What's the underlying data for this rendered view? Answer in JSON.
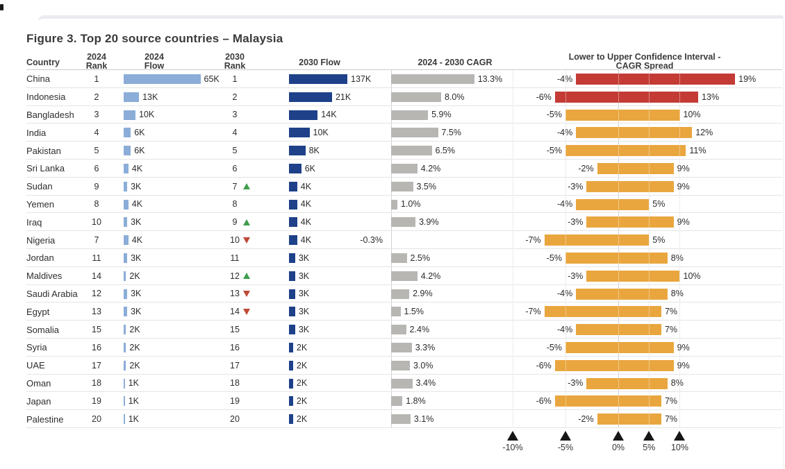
{
  "figure": {
    "title": "Figure 3. Top 20 source countries – Malaysia"
  },
  "headers": {
    "country": {
      "line1": "Country",
      "line2": ""
    },
    "rank2024": {
      "line1": "2024",
      "line2": "Rank"
    },
    "flow2024": {
      "line1": "2024",
      "line2": "Flow"
    },
    "rank2030": {
      "line1": "2030",
      "line2": "Rank"
    },
    "flow2030": {
      "line1": "2030 Flow",
      "line2": ""
    },
    "cagr": {
      "line1": "2024 - 2030 CAGR",
      "line2": ""
    },
    "ci": {
      "line1": "Lower to Upper Confidence Interval -",
      "line2": "CAGR Spread"
    }
  },
  "colors": {
    "flow2024_bar": "#8badd8",
    "flow2030_bar": "#1e4189",
    "cagr_bar": "#b7b6b3",
    "ci_bar_highlight": "#c43b35",
    "ci_bar_default": "#e9a63e",
    "rank_up_arrow": "#3f9e4d",
    "rank_down_arrow": "#bf4a36",
    "axis_marker": "#161616"
  },
  "chart_data": {
    "type": "table",
    "title": "Figure 3. Top 20 source countries – Malaysia",
    "columns": [
      "Country",
      "2024 Rank",
      "2024 Flow",
      "2030 Rank",
      "2030 Flow",
      "2024 - 2030 CAGR",
      "Lower to Upper Confidence Interval - CAGR Spread"
    ],
    "rows": [
      {
        "country": "China",
        "rank_2024": "1",
        "flow_2024": "65K",
        "flow_2024_k": 65,
        "rank_2030": "1",
        "rank_change": null,
        "flow_2030": "137K",
        "flow_2030_k": 137,
        "cagr": "13.3%",
        "cagr_pct": 13.3,
        "ci_lower": "-4%",
        "ci_lower_pct": -4,
        "ci_upper": "19%",
        "ci_upper_pct": 19,
        "ci_color": "highlight"
      },
      {
        "country": "Indonesia",
        "rank_2024": "2",
        "flow_2024": "13K",
        "flow_2024_k": 13,
        "rank_2030": "2",
        "rank_change": null,
        "flow_2030": "21K",
        "flow_2030_k": 21,
        "cagr": "8.0%",
        "cagr_pct": 8.0,
        "ci_lower": "-6%",
        "ci_lower_pct": -6,
        "ci_upper": "13%",
        "ci_upper_pct": 13,
        "ci_color": "highlight"
      },
      {
        "country": "Bangladesh",
        "rank_2024": "3",
        "flow_2024": "10K",
        "flow_2024_k": 10,
        "rank_2030": "3",
        "rank_change": null,
        "flow_2030": "14K",
        "flow_2030_k": 14,
        "cagr": "5.9%",
        "cagr_pct": 5.9,
        "ci_lower": "-5%",
        "ci_lower_pct": -5,
        "ci_upper": "10%",
        "ci_upper_pct": 10,
        "ci_color": "default"
      },
      {
        "country": "India",
        "rank_2024": "4",
        "flow_2024": "6K",
        "flow_2024_k": 6,
        "rank_2030": "4",
        "rank_change": null,
        "flow_2030": "10K",
        "flow_2030_k": 10,
        "cagr": "7.5%",
        "cagr_pct": 7.5,
        "ci_lower": "-4%",
        "ci_lower_pct": -4,
        "ci_upper": "12%",
        "ci_upper_pct": 12,
        "ci_color": "default"
      },
      {
        "country": "Pakistan",
        "rank_2024": "5",
        "flow_2024": "6K",
        "flow_2024_k": 6,
        "rank_2030": "5",
        "rank_change": null,
        "flow_2030": "8K",
        "flow_2030_k": 8,
        "cagr": "6.5%",
        "cagr_pct": 6.5,
        "ci_lower": "-5%",
        "ci_lower_pct": -5,
        "ci_upper": "11%",
        "ci_upper_pct": 11,
        "ci_color": "default"
      },
      {
        "country": "Sri Lanka",
        "rank_2024": "6",
        "flow_2024": "4K",
        "flow_2024_k": 4,
        "rank_2030": "6",
        "rank_change": null,
        "flow_2030": "6K",
        "flow_2030_k": 6,
        "cagr": "4.2%",
        "cagr_pct": 4.2,
        "ci_lower": "-2%",
        "ci_lower_pct": -2,
        "ci_upper": "9%",
        "ci_upper_pct": 9,
        "ci_color": "default"
      },
      {
        "country": "Sudan",
        "rank_2024": "9",
        "flow_2024": "3K",
        "flow_2024_k": 3,
        "rank_2030": "7",
        "rank_change": "up",
        "flow_2030": "4K",
        "flow_2030_k": 4,
        "cagr": "3.5%",
        "cagr_pct": 3.5,
        "ci_lower": "-3%",
        "ci_lower_pct": -3,
        "ci_upper": "9%",
        "ci_upper_pct": 9,
        "ci_color": "default"
      },
      {
        "country": "Yemen",
        "rank_2024": "8",
        "flow_2024": "4K",
        "flow_2024_k": 4,
        "rank_2030": "8",
        "rank_change": null,
        "flow_2030": "4K",
        "flow_2030_k": 4,
        "cagr": "1.0%",
        "cagr_pct": 1.0,
        "ci_lower": "-4%",
        "ci_lower_pct": -4,
        "ci_upper": "5%",
        "ci_upper_pct": 5,
        "ci_color": "default"
      },
      {
        "country": "Iraq",
        "rank_2024": "10",
        "flow_2024": "3K",
        "flow_2024_k": 3,
        "rank_2030": "9",
        "rank_change": "up",
        "flow_2030": "4K",
        "flow_2030_k": 4,
        "cagr": "3.9%",
        "cagr_pct": 3.9,
        "ci_lower": "-3%",
        "ci_lower_pct": -3,
        "ci_upper": "9%",
        "ci_upper_pct": 9,
        "ci_color": "default"
      },
      {
        "country": "Nigeria",
        "rank_2024": "7",
        "flow_2024": "4K",
        "flow_2024_k": 4,
        "rank_2030": "10",
        "rank_change": "down",
        "flow_2030": "4K",
        "flow_2030_k": 4,
        "cagr": "-0.3%",
        "cagr_pct": -0.3,
        "ci_lower": "-7%",
        "ci_lower_pct": -7,
        "ci_upper": "5%",
        "ci_upper_pct": 5,
        "ci_color": "default"
      },
      {
        "country": "Jordan",
        "rank_2024": "11",
        "flow_2024": "3K",
        "flow_2024_k": 3,
        "rank_2030": "11",
        "rank_change": null,
        "flow_2030": "3K",
        "flow_2030_k": 3,
        "cagr": "2.5%",
        "cagr_pct": 2.5,
        "ci_lower": "-5%",
        "ci_lower_pct": -5,
        "ci_upper": "8%",
        "ci_upper_pct": 8,
        "ci_color": "default"
      },
      {
        "country": "Maldives",
        "rank_2024": "14",
        "flow_2024": "2K",
        "flow_2024_k": 2,
        "rank_2030": "12",
        "rank_change": "up",
        "flow_2030": "3K",
        "flow_2030_k": 3,
        "cagr": "4.2%",
        "cagr_pct": 4.2,
        "ci_lower": "-3%",
        "ci_lower_pct": -3,
        "ci_upper": "10%",
        "ci_upper_pct": 10,
        "ci_color": "default"
      },
      {
        "country": "Saudi Arabia",
        "rank_2024": "12",
        "flow_2024": "3K",
        "flow_2024_k": 3,
        "rank_2030": "13",
        "rank_change": "down",
        "flow_2030": "3K",
        "flow_2030_k": 3,
        "cagr": "2.9%",
        "cagr_pct": 2.9,
        "ci_lower": "-4%",
        "ci_lower_pct": -4,
        "ci_upper": "8%",
        "ci_upper_pct": 8,
        "ci_color": "default"
      },
      {
        "country": "Egypt",
        "rank_2024": "13",
        "flow_2024": "3K",
        "flow_2024_k": 3,
        "rank_2030": "14",
        "rank_change": "down",
        "flow_2030": "3K",
        "flow_2030_k": 3,
        "cagr": "1.5%",
        "cagr_pct": 1.5,
        "ci_lower": "-7%",
        "ci_lower_pct": -7,
        "ci_upper": "7%",
        "ci_upper_pct": 7,
        "ci_color": "default"
      },
      {
        "country": "Somalia",
        "rank_2024": "15",
        "flow_2024": "2K",
        "flow_2024_k": 2,
        "rank_2030": "15",
        "rank_change": null,
        "flow_2030": "3K",
        "flow_2030_k": 3,
        "cagr": "2.4%",
        "cagr_pct": 2.4,
        "ci_lower": "-4%",
        "ci_lower_pct": -4,
        "ci_upper": "7%",
        "ci_upper_pct": 7,
        "ci_color": "default"
      },
      {
        "country": "Syria",
        "rank_2024": "16",
        "flow_2024": "2K",
        "flow_2024_k": 2,
        "rank_2030": "16",
        "rank_change": null,
        "flow_2030": "2K",
        "flow_2030_k": 2,
        "cagr": "3.3%",
        "cagr_pct": 3.3,
        "ci_lower": "-5%",
        "ci_lower_pct": -5,
        "ci_upper": "9%",
        "ci_upper_pct": 9,
        "ci_color": "default"
      },
      {
        "country": "UAE",
        "rank_2024": "17",
        "flow_2024": "2K",
        "flow_2024_k": 2,
        "rank_2030": "17",
        "rank_change": null,
        "flow_2030": "2K",
        "flow_2030_k": 2,
        "cagr": "3.0%",
        "cagr_pct": 3.0,
        "ci_lower": "-6%",
        "ci_lower_pct": -6,
        "ci_upper": "9%",
        "ci_upper_pct": 9,
        "ci_color": "default"
      },
      {
        "country": "Oman",
        "rank_2024": "18",
        "flow_2024": "1K",
        "flow_2024_k": 1,
        "rank_2030": "18",
        "rank_change": null,
        "flow_2030": "2K",
        "flow_2030_k": 2,
        "cagr": "3.4%",
        "cagr_pct": 3.4,
        "ci_lower": "-3%",
        "ci_lower_pct": -3,
        "ci_upper": "8%",
        "ci_upper_pct": 8,
        "ci_color": "default"
      },
      {
        "country": "Japan",
        "rank_2024": "19",
        "flow_2024": "1K",
        "flow_2024_k": 1,
        "rank_2030": "19",
        "rank_change": null,
        "flow_2030": "2K",
        "flow_2030_k": 2,
        "cagr": "1.8%",
        "cagr_pct": 1.8,
        "ci_lower": "-6%",
        "ci_lower_pct": -6,
        "ci_upper": "7%",
        "ci_upper_pct": 7,
        "ci_color": "default"
      },
      {
        "country": "Palestine",
        "rank_2024": "20",
        "flow_2024": "1K",
        "flow_2024_k": 1,
        "rank_2030": "20",
        "rank_change": null,
        "flow_2030": "2K",
        "flow_2030_k": 2,
        "cagr": "3.1%",
        "cagr_pct": 3.1,
        "ci_lower": "-2%",
        "ci_lower_pct": -2,
        "ci_upper": "7%",
        "ci_upper_pct": 7,
        "ci_color": "default"
      }
    ],
    "ci_axis": {
      "tick_labels": [
        "-10%",
        "-5%",
        "0%",
        "5%",
        "10%"
      ],
      "tick_values": [
        -10,
        -5,
        0,
        5,
        10
      ],
      "gridlines": true,
      "zero_line": true
    }
  }
}
